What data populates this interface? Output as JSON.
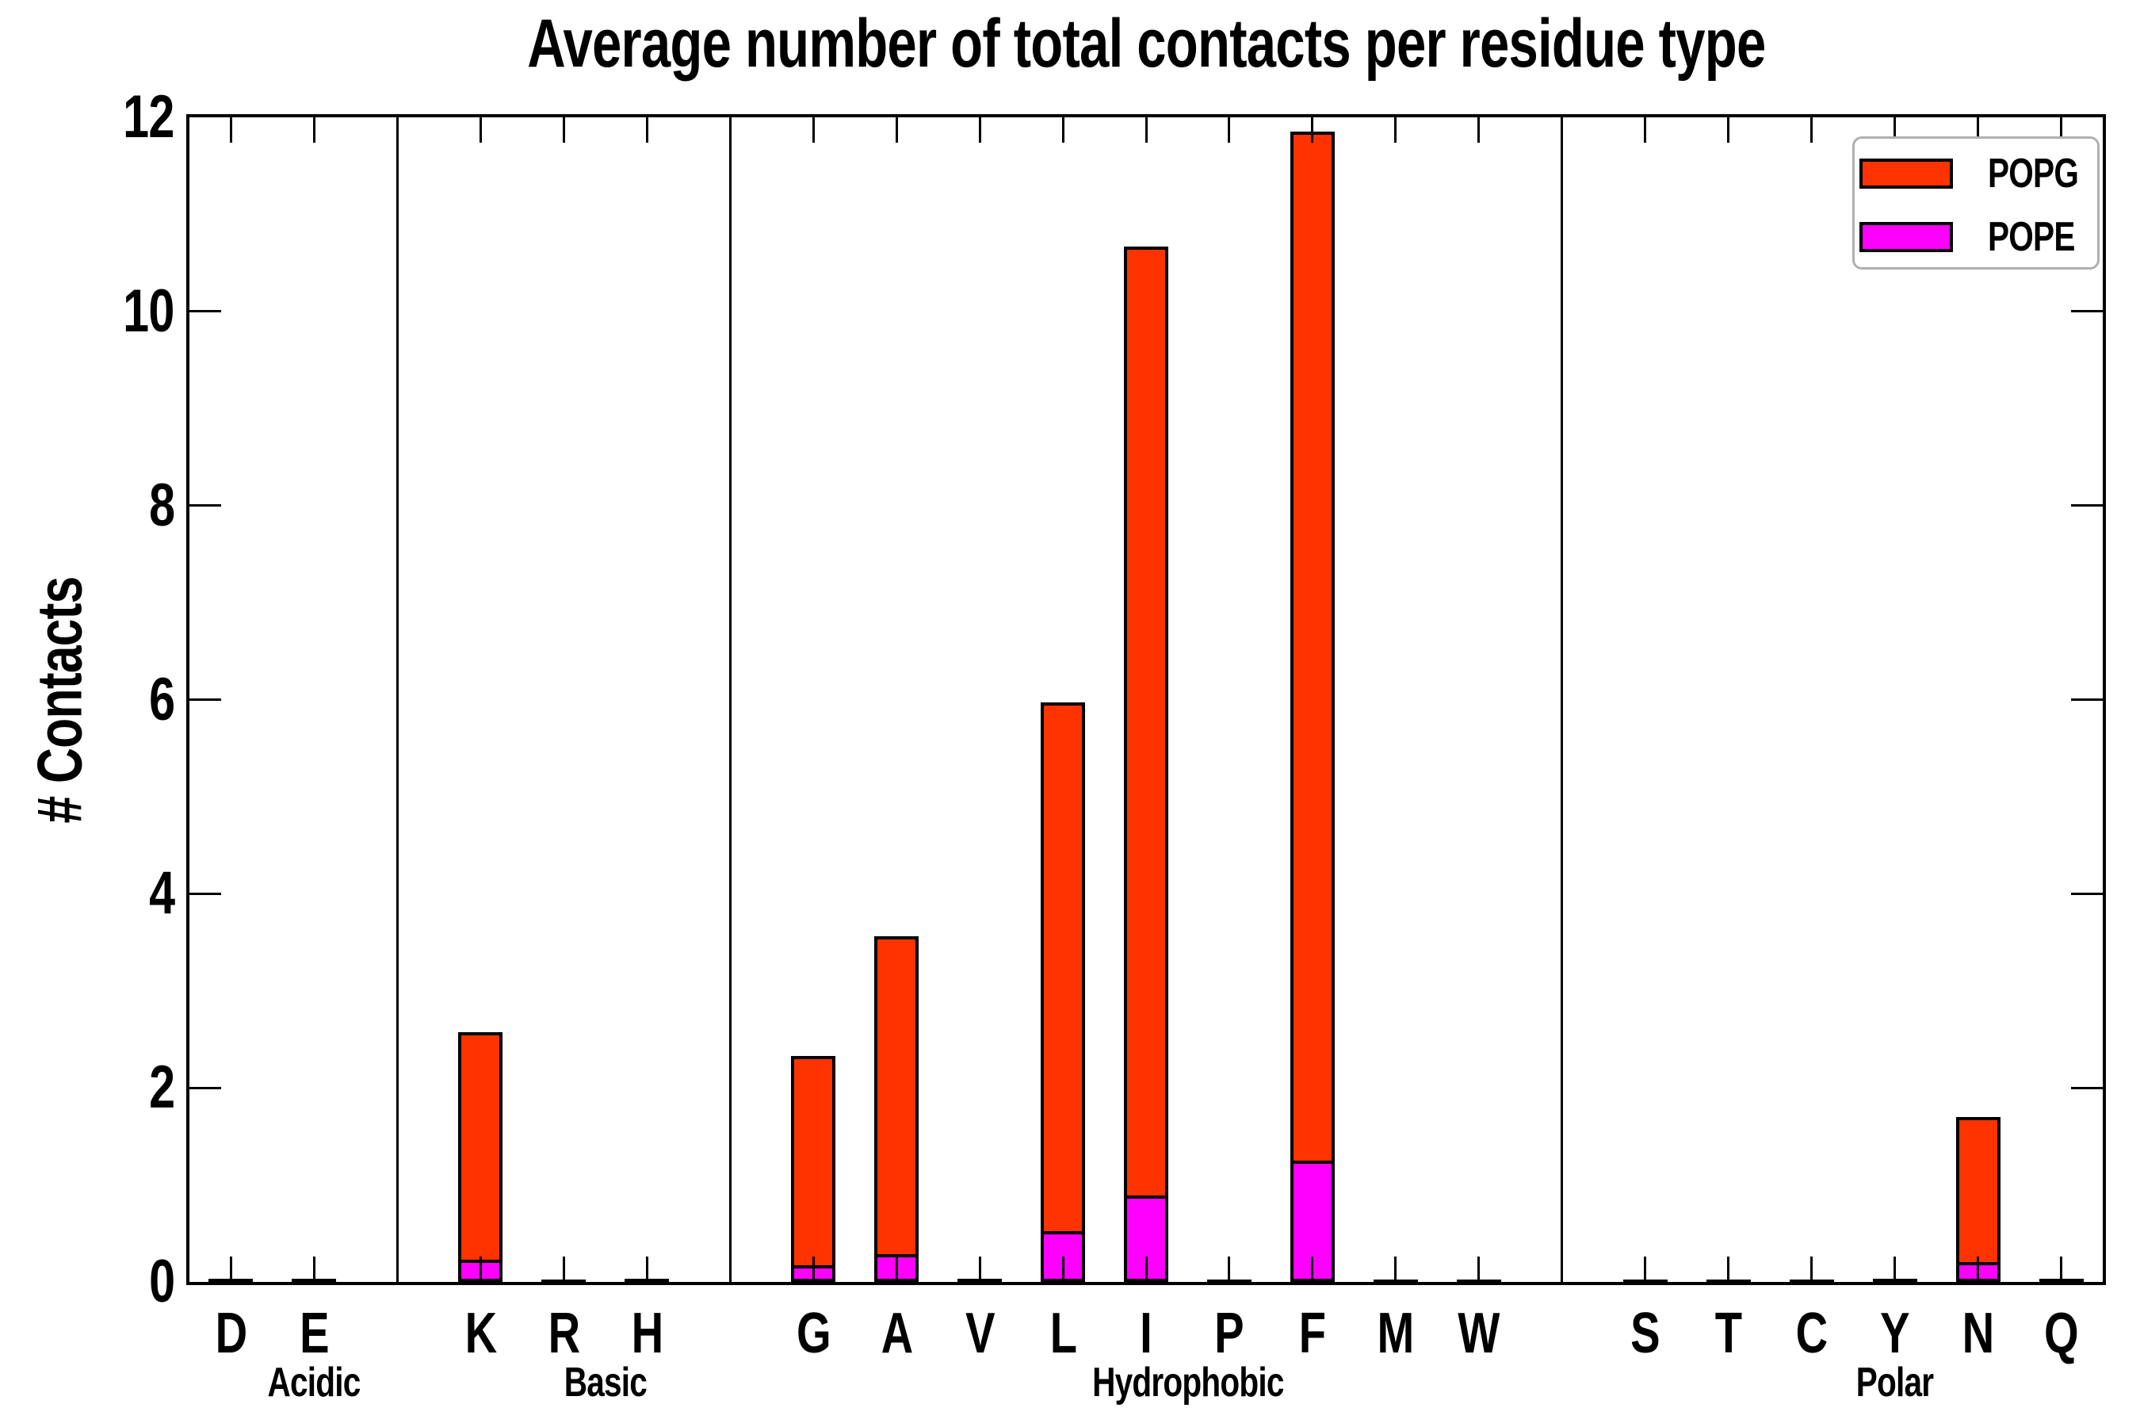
{
  "chart_data": {
    "type": "bar",
    "subtype": "stacked-vertical",
    "title": "Average number of total contacts per residue type",
    "xlabel": "",
    "ylabel": "# Contacts",
    "ylim": [
      0,
      12
    ],
    "yticks": [
      0,
      2,
      4,
      6,
      8,
      10,
      12
    ],
    "grid": false,
    "legend_position": "upper right",
    "categories": [
      "D",
      "E",
      "K",
      "R",
      "H",
      "G",
      "A",
      "V",
      "L",
      "I",
      "P",
      "F",
      "M",
      "W",
      "S",
      "T",
      "C",
      "Y",
      "N",
      "Q"
    ],
    "category_slots": [
      0,
      1,
      3,
      4,
      5,
      7,
      8,
      9,
      10,
      11,
      12,
      13,
      14,
      15,
      17,
      18,
      19,
      20,
      21,
      22
    ],
    "total_slots": 23,
    "separator_slots": [
      2,
      6,
      16
    ],
    "groups": [
      {
        "label": "Acidic",
        "residues": [
          "D",
          "E"
        ],
        "center_slot": 1.0
      },
      {
        "label": "Basic",
        "residues": [
          "K",
          "R",
          "H"
        ],
        "center_slot": 4.5
      },
      {
        "label": "Hydrophobic",
        "residues": [
          "G",
          "A",
          "V",
          "L",
          "I",
          "P",
          "F",
          "M",
          "W"
        ],
        "center_slot": 11.5
      },
      {
        "label": "Polar",
        "residues": [
          "S",
          "T",
          "C",
          "Y",
          "N",
          "Q"
        ],
        "center_slot": 20.0
      }
    ],
    "stack_bottom_to_top": [
      "POPE",
      "POPG"
    ],
    "series": [
      {
        "name": "POPG",
        "color": "#FF3300",
        "values": [
          0.02,
          0.02,
          2.37,
          0.01,
          0.02,
          2.19,
          3.31,
          0.02,
          5.48,
          9.81,
          0.01,
          10.63,
          0.01,
          0.01,
          0.01,
          0.01,
          0.01,
          0.02,
          1.53,
          0.02
        ]
      },
      {
        "name": "POPE",
        "color": "#FF00FF",
        "values": [
          0.01,
          0.01,
          0.2,
          0.01,
          0.01,
          0.14,
          0.25,
          0.01,
          0.49,
          0.86,
          0.01,
          1.22,
          0.01,
          0.01,
          0.01,
          0.01,
          0.01,
          0.01,
          0.17,
          0.01
        ]
      }
    ],
    "stacked_totals": [
      0.03,
      0.03,
      2.57,
      0.02,
      0.03,
      2.33,
      3.56,
      0.03,
      5.97,
      10.67,
      0.02,
      11.85,
      0.02,
      0.02,
      0.02,
      0.02,
      0.02,
      0.03,
      1.7,
      0.03
    ]
  },
  "legend": {
    "entries": [
      {
        "label": "POPG",
        "color": "#FF3300"
      },
      {
        "label": "POPE",
        "color": "#FF00FF"
      }
    ]
  },
  "colors": {
    "popg": "#FF3300",
    "pope": "#FF00FF",
    "bar_edge": "#000000",
    "axis": "#000000",
    "legend_border": "#b0b0b0",
    "background": "#ffffff"
  }
}
